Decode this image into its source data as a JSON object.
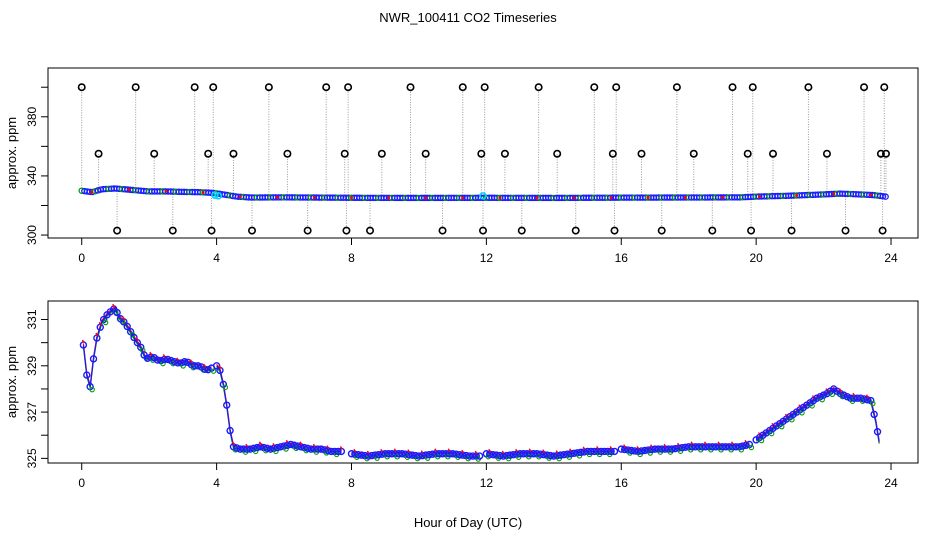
{
  "chart_data": {
    "type": "line",
    "title": "NWR_100411  CO2 Timeseries",
    "xlabel": "Hour of Day (UTC)",
    "x_ticks": [
      0,
      4,
      8,
      12,
      16,
      20,
      24
    ],
    "x_tick_labels": [
      "0",
      "4",
      "8",
      "12",
      "16",
      "20",
      "24"
    ],
    "xlim": [
      -1,
      24.8
    ],
    "colors": {
      "black": "#000000",
      "blue": "#1a1aff",
      "green": "#00a000",
      "red": "#ff0000",
      "cyan": "#00d8ff",
      "grey": "#9a9a9a"
    },
    "panels": [
      {
        "name": "top",
        "ylabel": "approx. ppm",
        "ylim": [
          298,
          413
        ],
        "y_ticks": [
          300,
          320,
          340,
          360,
          380,
          400
        ],
        "y_tick_labels": [
          "300",
          "",
          "340",
          "",
          "380",
          ""
        ],
        "mean_series": {
          "x": [
            0,
            0.3,
            0.6,
            1.0,
            1.5,
            2.0,
            2.5,
            3.0,
            3.5,
            3.9,
            4.2,
            4.6,
            5.0,
            6.0,
            8.0,
            10.0,
            12.0,
            14.0,
            16.0,
            18.0,
            19.5,
            20.0,
            21.0,
            22.0,
            22.5,
            23.0,
            23.5,
            23.9
          ],
          "y": [
            330,
            329,
            331,
            331.5,
            330.5,
            329.5,
            329.5,
            329.2,
            329,
            328.5,
            327.5,
            326,
            325.4,
            325.5,
            325.2,
            325.1,
            325.2,
            325.1,
            325.3,
            325.4,
            325.5,
            326,
            326.6,
            327.5,
            328,
            327.6,
            327,
            325.8
          ]
        },
        "cyan_points": {
          "x": [
            3.95,
            4.05,
            11.9
          ],
          "y": [
            327,
            326.5,
            326.5
          ]
        },
        "spike_points": {
          "x": [
            0,
            0.5,
            1.05,
            1.6,
            2.15,
            2.7,
            3.35,
            3.75,
            3.85,
            3.9,
            4.5,
            5.05,
            5.55,
            6.1,
            6.7,
            7.25,
            7.8,
            7.85,
            7.9,
            8.9,
            8.55,
            9.75,
            10.2,
            10.7,
            11.3,
            11.85,
            11.9,
            11.95,
            12.55,
            13.05,
            13.55,
            14.1,
            14.65,
            15.2,
            15.75,
            15.8,
            15.85,
            16.6,
            17.2,
            17.65,
            18.15,
            18.7,
            19.3,
            19.75,
            19.85,
            19.9,
            20.5,
            21.05,
            21.55,
            22.1,
            22.65,
            23.2,
            23.7,
            23.75,
            23.8,
            23.85
          ]
        }
      },
      {
        "name": "bottom",
        "ylabel": "approx. ppm",
        "ylim": [
          324.8,
          331.8
        ],
        "y_ticks": [
          325,
          326,
          327,
          328,
          329,
          330,
          331
        ],
        "y_tick_labels": [
          "325",
          "",
          "327",
          "",
          "329",
          "",
          "331"
        ],
        "series": [
          {
            "name": "blue",
            "x": [
              0.05,
              0.15,
              0.25,
              0.35,
              0.45,
              0.6,
              0.75,
              0.9,
              1.0,
              1.1,
              1.25,
              1.4,
              1.6,
              1.75,
              1.9,
              2.1,
              2.3,
              2.5,
              2.7,
              2.9,
              3.1,
              3.3,
              3.5,
              3.7,
              3.85
            ],
            "y": [
              329.9,
              328.6,
              328.1,
              329.3,
              330.2,
              330.9,
              331.2,
              331.4,
              331.5,
              331.1,
              330.9,
              330.6,
              330.1,
              329.8,
              329.3,
              329.4,
              329.2,
              329.3,
              329.2,
              329.1,
              329.2,
              329.0,
              329.0,
              328.8,
              328.9
            ]
          },
          {
            "name": "blue",
            "x": [
              4.0,
              4.1,
              4.2,
              4.3,
              4.4,
              4.5,
              4.7,
              5.0,
              5.3,
              5.6,
              5.9,
              6.2,
              6.5,
              6.8,
              7.1,
              7.4,
              7.7
            ],
            "y": [
              329.0,
              328.8,
              328.2,
              327.3,
              326.2,
              325.5,
              325.4,
              325.4,
              325.5,
              325.4,
              325.5,
              325.6,
              325.5,
              325.4,
              325.4,
              325.3,
              325.3
            ]
          },
          {
            "name": "blue",
            "x": [
              8.0,
              8.5,
              9.0,
              9.5,
              10.0,
              10.5,
              11.0,
              11.5,
              11.8
            ],
            "y": [
              325.2,
              325.1,
              325.2,
              325.2,
              325.1,
              325.2,
              325.2,
              325.1,
              325.1
            ]
          },
          {
            "name": "blue",
            "x": [
              12.0,
              12.5,
              13.0,
              13.5,
              14.0,
              14.5,
              15.0,
              15.5,
              15.8
            ],
            "y": [
              325.2,
              325.1,
              325.2,
              325.2,
              325.1,
              325.2,
              325.3,
              325.3,
              325.3
            ]
          },
          {
            "name": "blue",
            "x": [
              16.0,
              16.5,
              17.0,
              17.5,
              18.0,
              18.5,
              19.0,
              19.5,
              19.8
            ],
            "y": [
              325.4,
              325.3,
              325.4,
              325.4,
              325.5,
              325.5,
              325.5,
              325.5,
              325.6
            ]
          },
          {
            "name": "blue",
            "x": [
              20.0,
              20.3,
              20.6,
              20.9,
              21.2,
              21.5,
              21.8,
              22.1,
              22.3,
              22.5,
              22.8,
              23.1,
              23.4,
              23.55,
              23.65
            ],
            "y": [
              325.8,
              326.1,
              326.4,
              326.7,
              327.0,
              327.3,
              327.6,
              327.8,
              328.0,
              327.8,
              327.6,
              327.6,
              327.5,
              326.6,
              325.7
            ]
          }
        ],
        "gaps_at": [
          3.9,
          7.85,
          11.9,
          15.9,
          19.9
        ]
      }
    ]
  }
}
